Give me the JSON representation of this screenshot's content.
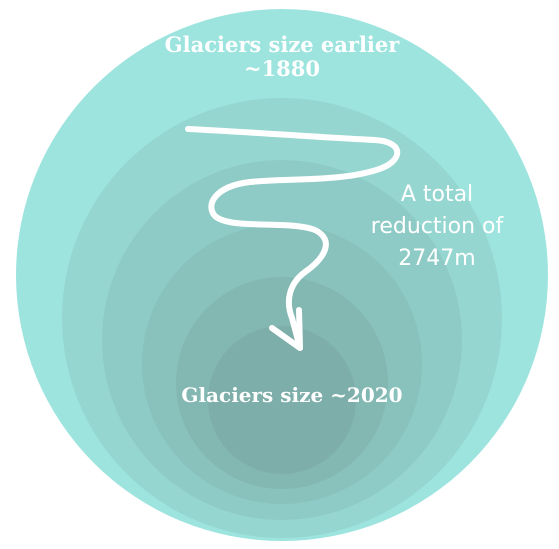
{
  "title_top_line1": "Glaciers size earlier",
  "title_top_line2": "~1880",
  "annotation_line1": "A total",
  "annotation_line2": "reduction of",
  "annotation_line3": "2747m",
  "label_bottom": "Glaciers size ~2020",
  "colors": {
    "ring1": "#9de4df",
    "ring2": "#95d6d1",
    "ring3": "#8fcbc6",
    "ring4": "#89c1bc",
    "ring5": "#83b7b2",
    "ring6": "#7eaea9",
    "text": "#ffffff",
    "arrow": "#ffffff"
  }
}
